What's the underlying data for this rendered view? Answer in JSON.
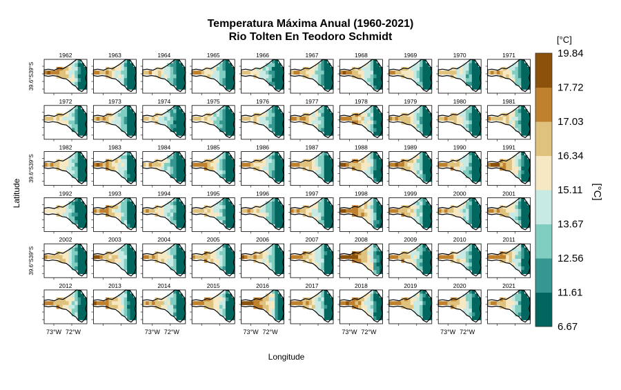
{
  "chart_data": {
    "type": "heatmap",
    "title": "Temperatura Máxima Anual (1960-2021)",
    "subtitle": "Rio Tolten En Teodoro Schmidt",
    "xlabel": "Longitude",
    "ylabel": "Latitude",
    "x_ticks": [
      "73°W",
      "72°W"
    ],
    "y_ticks": [
      "39.6°S",
      "39°S"
    ],
    "years": [
      "1962",
      "1963",
      "1964",
      "1965",
      "1966",
      "1967",
      "1968",
      "1969",
      "1970",
      "1971",
      "1972",
      "1973",
      "1974",
      "1975",
      "1976",
      "1977",
      "1978",
      "1979",
      "1980",
      "1981",
      "1982",
      "1983",
      "1984",
      "1985",
      "1986",
      "1987",
      "1988",
      "1989",
      "1990",
      "1991",
      "1992",
      "1993",
      "1994",
      "1995",
      "1996",
      "1997",
      "1998",
      "1999",
      "2000",
      "2001",
      "2002",
      "2003",
      "2004",
      "2005",
      "2006",
      "2007",
      "2008",
      "2009",
      "2010",
      "2011",
      "2012",
      "2013",
      "2014",
      "2015",
      "2016",
      "2017",
      "2018",
      "2019",
      "2020",
      "2021"
    ],
    "legend": {
      "unit": "[°C]",
      "title": "[°C]",
      "breaks": [
        "6.67",
        "11.61",
        "12.56",
        "13.67",
        "15.11",
        "16.34",
        "17.03",
        "17.72",
        "19.84"
      ],
      "colors": [
        "#01665e",
        "#35978f",
        "#80cdc1",
        "#c7eae5",
        "#f6e8c3",
        "#dfc27d",
        "#bf812d",
        "#8c510a"
      ]
    },
    "panel_warmth": [
      0.72,
      0.62,
      0.52,
      0.55,
      0.5,
      0.58,
      0.66,
      0.6,
      0.55,
      0.58,
      0.55,
      0.58,
      0.5,
      0.52,
      0.55,
      0.62,
      0.68,
      0.62,
      0.58,
      0.62,
      0.58,
      0.68,
      0.52,
      0.62,
      0.6,
      0.65,
      0.7,
      0.68,
      0.6,
      0.7,
      0.5,
      0.65,
      0.55,
      0.58,
      0.52,
      0.62,
      0.78,
      0.66,
      0.58,
      0.62,
      0.58,
      0.66,
      0.6,
      0.6,
      0.62,
      0.66,
      0.82,
      0.64,
      0.6,
      0.7,
      0.66,
      0.7,
      0.62,
      0.68,
      0.8,
      0.68,
      0.72,
      0.66,
      0.66,
      0.62
    ]
  }
}
